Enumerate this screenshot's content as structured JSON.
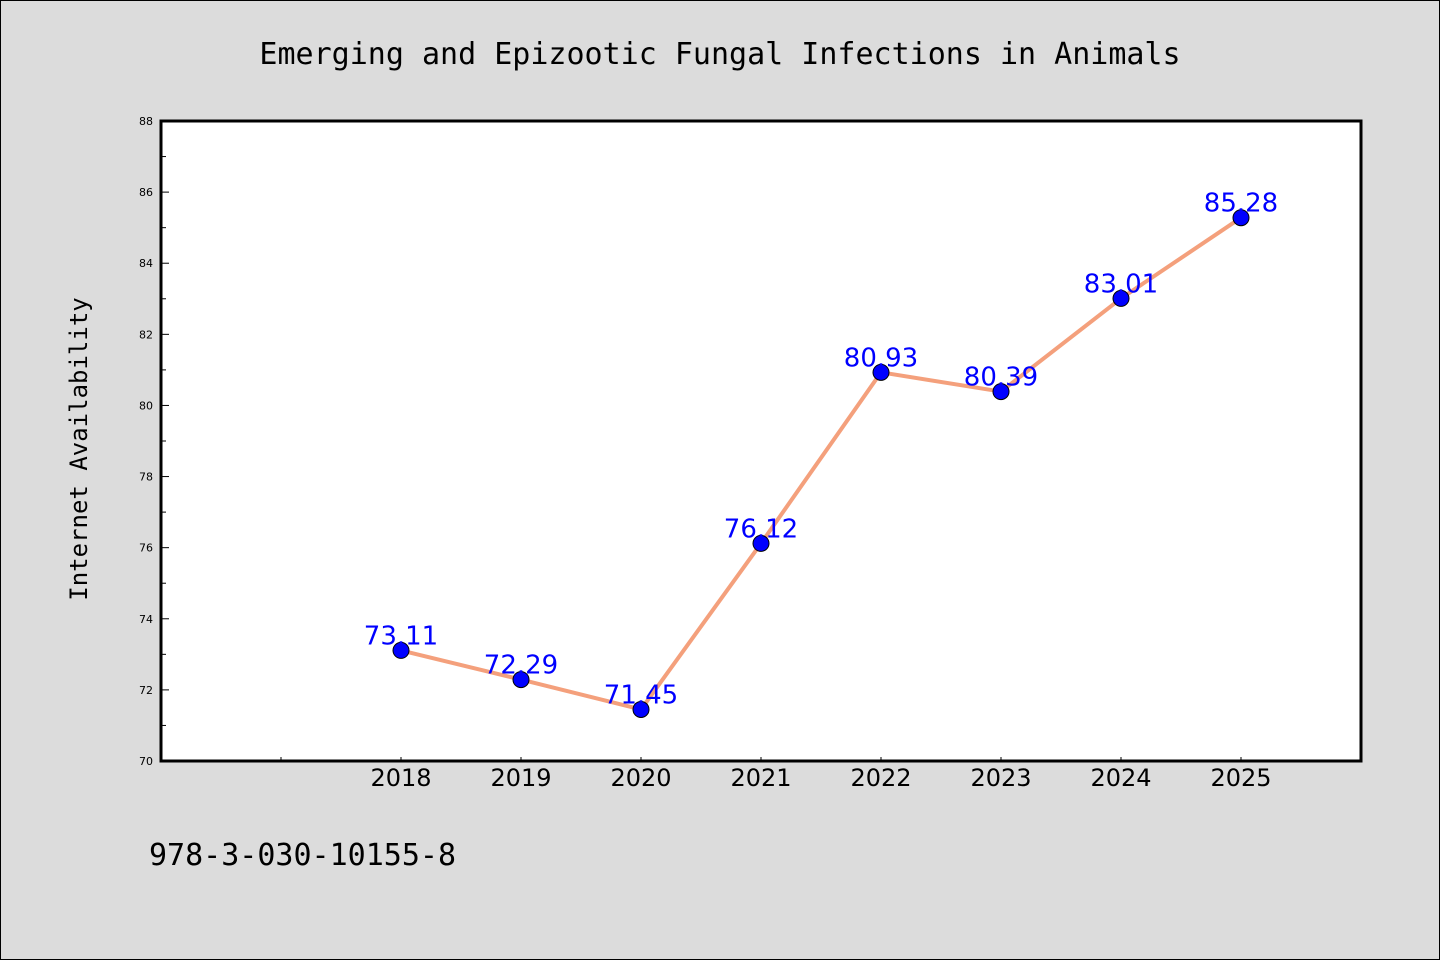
{
  "chart_data": {
    "type": "line",
    "title": "Emerging and Epizootic Fungal Infections in Animals",
    "xlabel": "",
    "ylabel": "Internet Availability",
    "x": [
      2018,
      2019,
      2020,
      2021,
      2022,
      2023,
      2024,
      2025
    ],
    "x_tick_labels": [
      "2018",
      "2019",
      "2020",
      "2021",
      "2022",
      "2023",
      "2024",
      "2025"
    ],
    "series": [
      {
        "values": [
          73.11,
          72.29,
          71.45,
          76.12,
          80.93,
          80.39,
          83.01,
          85.28
        ],
        "labels": [
          "73.11",
          "72.29",
          "71.45",
          "76.12",
          "80.93",
          "80.39",
          "83.01",
          "85.28"
        ],
        "line_color": "#f4a07c",
        "marker_color": "#0000ff",
        "label_color": "#0000ff"
      }
    ],
    "xlim": [
      2016,
      2026
    ],
    "ylim": [
      70,
      88
    ],
    "y_ticks": [
      70,
      72,
      74,
      76,
      78,
      80,
      82,
      84,
      86,
      88
    ],
    "y_tick_labels": [
      "70",
      "72",
      "74",
      "76",
      "78",
      "80",
      "82",
      "84",
      "86",
      "88"
    ],
    "grid": false,
    "legend": "none"
  },
  "annotation": {
    "isbn": "978-3-030-10155-8"
  },
  "colors": {
    "background": "#dcdcdc",
    "plot_background": "#ffffff",
    "axis": "#000000"
  }
}
